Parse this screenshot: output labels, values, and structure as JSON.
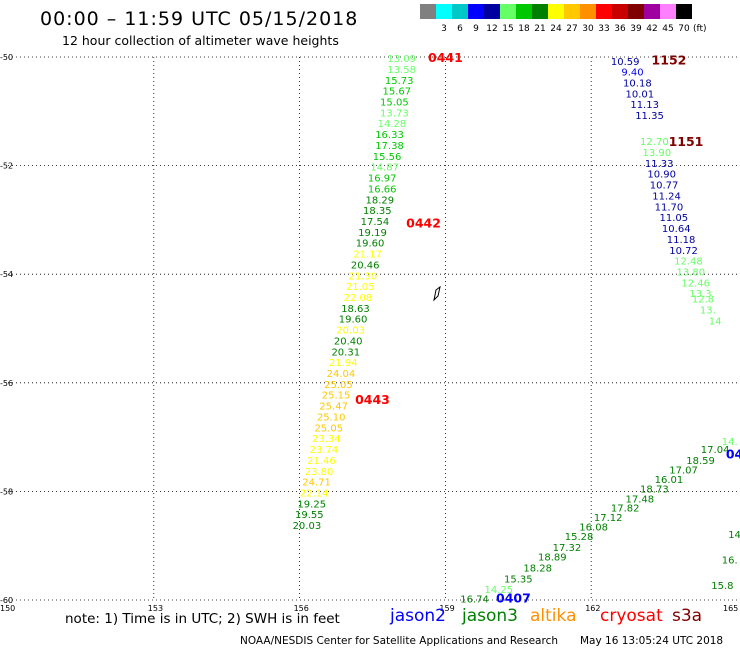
{
  "header": {
    "title": "00:00 – 11:59 UTC 05/15/2018",
    "subtitle": "12 hour collection of altimeter wave heights"
  },
  "color_scale": {
    "unit": "(ft)",
    "swatches": [
      {
        "label": "",
        "color": "#808080"
      },
      {
        "label": "3",
        "color": "#00ffff"
      },
      {
        "label": "6",
        "color": "#00c8c8"
      },
      {
        "label": "9",
        "color": "#0000ff"
      },
      {
        "label": "12",
        "color": "#0000a0"
      },
      {
        "label": "15",
        "color": "#66ff66"
      },
      {
        "label": "18",
        "color": "#00c800"
      },
      {
        "label": "21",
        "color": "#008000"
      },
      {
        "label": "24",
        "color": "#ffff00"
      },
      {
        "label": "27",
        "color": "#ffc800"
      },
      {
        "label": "30",
        "color": "#ff9000"
      },
      {
        "label": "33",
        "color": "#ff0000"
      },
      {
        "label": "36",
        "color": "#c80000"
      },
      {
        "label": "39",
        "color": "#800000"
      },
      {
        "label": "42",
        "color": "#a000a0"
      },
      {
        "label": "45",
        "color": "#ff80ff"
      },
      {
        "label": "70",
        "color": "#000000"
      }
    ]
  },
  "axes": {
    "lon_min": 150,
    "lon_max": 165,
    "lat_min": -60,
    "lat_max": -50,
    "x_ticks": [
      {
        "value": 150,
        "label": "150"
      },
      {
        "value": 153,
        "label": "153"
      },
      {
        "value": 156,
        "label": "156"
      },
      {
        "value": 159,
        "label": "159"
      },
      {
        "value": 162,
        "label": "162"
      },
      {
        "value": 165,
        "label": "165"
      }
    ],
    "y_ticks": [
      {
        "value": -50,
        "label": "-50"
      },
      {
        "value": -52,
        "label": "-52"
      },
      {
        "value": -54,
        "label": "-54"
      },
      {
        "value": -56,
        "label": "-56"
      },
      {
        "value": -58,
        "label": "-58"
      },
      {
        "value": -60,
        "label": "-60"
      }
    ]
  },
  "chart_data": {
    "type": "scatter",
    "title": "00:00 – 11:59 UTC 05/15/2018",
    "subtitle": "12 hour collection of altimeter wave heights",
    "xlim": [
      150,
      165
    ],
    "ylim": [
      -60,
      -50
    ],
    "tracks": [
      {
        "points": [
          {
            "lon": 158.1,
            "lat": -50.02,
            "v": "13.09",
            "c": "#66ff66"
          },
          {
            "lon": 158.1,
            "lat": -50.22,
            "v": "13.58",
            "c": "#66ff66"
          },
          {
            "lon": 158.05,
            "lat": -50.42,
            "v": "15.73",
            "c": "#00c800"
          },
          {
            "lon": 158.0,
            "lat": -50.62,
            "v": "15.67",
            "c": "#00c800"
          },
          {
            "lon": 157.95,
            "lat": -50.82,
            "v": "15.05",
            "c": "#00c800"
          },
          {
            "lon": 157.95,
            "lat": -51.02,
            "v": "13.73",
            "c": "#66ff66"
          },
          {
            "lon": 157.9,
            "lat": -51.22,
            "v": "14.28",
            "c": "#66ff66"
          },
          {
            "lon": 157.85,
            "lat": -51.42,
            "v": "16.33",
            "c": "#00c800"
          },
          {
            "lon": 157.85,
            "lat": -51.62,
            "v": "17.38",
            "c": "#00c800"
          },
          {
            "lon": 157.8,
            "lat": -51.82,
            "v": "15.56",
            "c": "#00c800"
          },
          {
            "lon": 157.75,
            "lat": -52.02,
            "v": "14.87",
            "c": "#66ff66"
          },
          {
            "lon": 157.7,
            "lat": -52.22,
            "v": "16.97",
            "c": "#00c800"
          },
          {
            "lon": 157.7,
            "lat": -52.42,
            "v": "16.66",
            "c": "#00c800"
          },
          {
            "lon": 157.65,
            "lat": -52.62,
            "v": "18.29",
            "c": "#008000"
          },
          {
            "lon": 157.6,
            "lat": -52.82,
            "v": "18.35",
            "c": "#008000"
          },
          {
            "lon": 157.55,
            "lat": -53.02,
            "v": "17.54",
            "c": "#008000"
          },
          {
            "lon": 157.5,
            "lat": -53.22,
            "v": "19.19",
            "c": "#008000"
          },
          {
            "lon": 157.45,
            "lat": -53.42,
            "v": "19.60",
            "c": "#008000"
          },
          {
            "lon": 157.4,
            "lat": -53.62,
            "v": "21.17",
            "c": "#ffff00"
          },
          {
            "lon": 157.35,
            "lat": -53.82,
            "v": "20.46",
            "c": "#008000"
          },
          {
            "lon": 157.3,
            "lat": -54.02,
            "v": "21.30",
            "c": "#ffff00"
          },
          {
            "lon": 157.25,
            "lat": -54.22,
            "v": "21.05",
            "c": "#ffff00"
          },
          {
            "lon": 157.2,
            "lat": -54.42,
            "v": "22.08",
            "c": "#ffff00"
          },
          {
            "lon": 157.15,
            "lat": -54.62,
            "v": "18.63",
            "c": "#008000"
          },
          {
            "lon": 157.1,
            "lat": -54.82,
            "v": "19.60",
            "c": "#008000"
          },
          {
            "lon": 157.05,
            "lat": -55.02,
            "v": "20.03",
            "c": "#ffff00"
          },
          {
            "lon": 157.0,
            "lat": -55.22,
            "v": "20.40",
            "c": "#008000"
          },
          {
            "lon": 156.95,
            "lat": -55.42,
            "v": "20.31",
            "c": "#008000"
          },
          {
            "lon": 156.9,
            "lat": -55.62,
            "v": "21.94",
            "c": "#ffff00"
          },
          {
            "lon": 156.85,
            "lat": -55.82,
            "v": "24.04",
            "c": "#ffc800"
          },
          {
            "lon": 156.8,
            "lat": -56.02,
            "v": "25.05",
            "c": "#ffc800"
          },
          {
            "lon": 156.75,
            "lat": -56.22,
            "v": "25.15",
            "c": "#ffc800"
          },
          {
            "lon": 156.7,
            "lat": -56.42,
            "v": "25.47",
            "c": "#ffc800"
          },
          {
            "lon": 156.65,
            "lat": -56.62,
            "v": "25.10",
            "c": "#ffc800"
          },
          {
            "lon": 156.6,
            "lat": -56.82,
            "v": "25.05",
            "c": "#ffc800"
          },
          {
            "lon": 156.55,
            "lat": -57.02,
            "v": "23.34",
            "c": "#ffff00"
          },
          {
            "lon": 156.5,
            "lat": -57.22,
            "v": "23.74",
            "c": "#ffff00"
          },
          {
            "lon": 156.45,
            "lat": -57.42,
            "v": "21.46",
            "c": "#ffff00"
          },
          {
            "lon": 156.4,
            "lat": -57.62,
            "v": "23.80",
            "c": "#ffff00"
          },
          {
            "lon": 156.35,
            "lat": -57.82,
            "v": "24.71",
            "c": "#ffc800"
          },
          {
            "lon": 156.3,
            "lat": -58.02,
            "v": "22.14",
            "c": "#ffff00"
          },
          {
            "lon": 156.25,
            "lat": -58.22,
            "v": "19.25",
            "c": "#008000"
          },
          {
            "lon": 156.2,
            "lat": -58.42,
            "v": "19.55",
            "c": "#008000"
          },
          {
            "lon": 156.15,
            "lat": -58.62,
            "v": "20.03",
            "c": "#008000"
          }
        ],
        "passes": [
          {
            "lon": 159.0,
            "lat": -50.0,
            "label": "0441",
            "c": "#ff0000"
          },
          {
            "lon": 158.55,
            "lat": -53.05,
            "label": "0442",
            "c": "#ff0000"
          },
          {
            "lon": 157.5,
            "lat": -56.3,
            "label": "0443",
            "c": "#ff0000"
          }
        ]
      },
      {
        "points": [
          {
            "lon": 162.7,
            "lat": -50.07,
            "v": "10.59",
            "c": "#0000a0"
          },
          {
            "lon": 162.85,
            "lat": -50.27,
            "v": "9.40",
            "c": "#0000ff"
          },
          {
            "lon": 162.95,
            "lat": -50.47,
            "v": "10.18",
            "c": "#0000a0"
          },
          {
            "lon": 163.0,
            "lat": -50.67,
            "v": "10.01",
            "c": "#0000a0"
          },
          {
            "lon": 163.1,
            "lat": -50.87,
            "v": "11.13",
            "c": "#0000a0"
          },
          {
            "lon": 163.2,
            "lat": -51.07,
            "v": "11.35",
            "c": "#0000a0"
          },
          {
            "lon": 163.3,
            "lat": -51.55,
            "v": "12.70",
            "c": "#66ff66"
          },
          {
            "lon": 163.35,
            "lat": -51.75,
            "v": "13.90",
            "c": "#66ff66"
          },
          {
            "lon": 163.4,
            "lat": -51.95,
            "v": "11.33",
            "c": "#0000a0"
          },
          {
            "lon": 163.45,
            "lat": -52.15,
            "v": "10.90",
            "c": "#0000a0"
          },
          {
            "lon": 163.5,
            "lat": -52.35,
            "v": "10.77",
            "c": "#0000a0"
          },
          {
            "lon": 163.55,
            "lat": -52.55,
            "v": "11.24",
            "c": "#0000a0"
          },
          {
            "lon": 163.6,
            "lat": -52.75,
            "v": "11.70",
            "c": "#0000a0"
          },
          {
            "lon": 163.7,
            "lat": -52.95,
            "v": "11.05",
            "c": "#0000a0"
          },
          {
            "lon": 163.75,
            "lat": -53.15,
            "v": "10.64",
            "c": "#0000a0"
          },
          {
            "lon": 163.85,
            "lat": -53.35,
            "v": "11.18",
            "c": "#0000a0"
          },
          {
            "lon": 163.9,
            "lat": -53.55,
            "v": "10.72",
            "c": "#0000a0"
          },
          {
            "lon": 164.0,
            "lat": -53.75,
            "v": "12.48",
            "c": "#66ff66"
          },
          {
            "lon": 164.05,
            "lat": -53.95,
            "v": "13.80",
            "c": "#66ff66"
          },
          {
            "lon": 164.15,
            "lat": -54.15,
            "v": "12.46",
            "c": "#66ff66"
          },
          {
            "lon": 164.25,
            "lat": -54.35,
            "v": "13.3",
            "c": "#66ff66"
          },
          {
            "lon": 164.3,
            "lat": -54.45,
            "v": "12.8",
            "c": "#66ff66"
          },
          {
            "lon": 164.4,
            "lat": -54.65,
            "v": "13.",
            "c": "#66ff66"
          },
          {
            "lon": 164.55,
            "lat": -54.85,
            "v": "14",
            "c": "#66ff66"
          }
        ],
        "passes": [
          {
            "lon": 163.6,
            "lat": -50.05,
            "label": "1152",
            "c": "#800000"
          },
          {
            "lon": 163.95,
            "lat": -51.55,
            "label": "1151",
            "c": "#800000"
          }
        ]
      },
      {
        "points": [
          {
            "lon": 159.6,
            "lat": -59.97,
            "v": "16.74",
            "c": "#008000"
          },
          {
            "lon": 160.1,
            "lat": -59.8,
            "v": "14.25",
            "c": "#66ff66"
          },
          {
            "lon": 160.5,
            "lat": -59.6,
            "v": "15.35",
            "c": "#008000"
          },
          {
            "lon": 160.9,
            "lat": -59.4,
            "v": "18.28",
            "c": "#008000"
          },
          {
            "lon": 161.2,
            "lat": -59.2,
            "v": "18.89",
            "c": "#008000"
          },
          {
            "lon": 161.5,
            "lat": -59.02,
            "v": "17.32",
            "c": "#008000"
          },
          {
            "lon": 161.75,
            "lat": -58.82,
            "v": "15.28",
            "c": "#008000"
          },
          {
            "lon": 162.05,
            "lat": -58.65,
            "v": "16.08",
            "c": "#008000"
          },
          {
            "lon": 162.35,
            "lat": -58.47,
            "v": "17.12",
            "c": "#008000"
          },
          {
            "lon": 162.7,
            "lat": -58.3,
            "v": "17.82",
            "c": "#008000"
          },
          {
            "lon": 163.0,
            "lat": -58.13,
            "v": "17.48",
            "c": "#008000"
          },
          {
            "lon": 163.3,
            "lat": -57.95,
            "v": "18.73",
            "c": "#008000"
          },
          {
            "lon": 163.6,
            "lat": -57.77,
            "v": "16.01",
            "c": "#008000"
          },
          {
            "lon": 163.9,
            "lat": -57.6,
            "v": "17.07",
            "c": "#008000"
          },
          {
            "lon": 164.25,
            "lat": -57.42,
            "v": "18.59",
            "c": "#008000"
          },
          {
            "lon": 164.55,
            "lat": -57.22,
            "v": "17.04",
            "c": "#008000"
          },
          {
            "lon": 164.85,
            "lat": -57.07,
            "v": "14.",
            "c": "#66ff66"
          }
        ],
        "passes": [
          {
            "lon": 160.4,
            "lat": -59.95,
            "label": "0407",
            "c": "#0000ff"
          },
          {
            "lon": 164.95,
            "lat": -57.3,
            "label": "04",
            "c": "#0000ff"
          }
        ]
      },
      {
        "points": [
          {
            "lon": 164.95,
            "lat": -58.78,
            "v": "14",
            "c": "#008000"
          },
          {
            "lon": 164.85,
            "lat": -59.25,
            "v": "16.",
            "c": "#008000"
          },
          {
            "lon": 164.7,
            "lat": -59.72,
            "v": "15.8",
            "c": "#008000"
          }
        ],
        "passes": []
      }
    ]
  },
  "legend": {
    "note": "note: 1) Time is in UTC; 2) SWH is in feet",
    "satellites": [
      {
        "name": "jason2",
        "color": "#0000ff"
      },
      {
        "name": "jason3",
        "color": "#008000"
      },
      {
        "name": "altika",
        "color": "#ff9000"
      },
      {
        "name": "cryosat",
        "color": "#ff0000"
      },
      {
        "name": "s3a",
        "color": "#800000"
      }
    ]
  },
  "footer": {
    "center": "NOAA/NESDIS Center for Satellite Applications and Research",
    "timestamp": "May 16 13:05:24 UTC 2018"
  }
}
